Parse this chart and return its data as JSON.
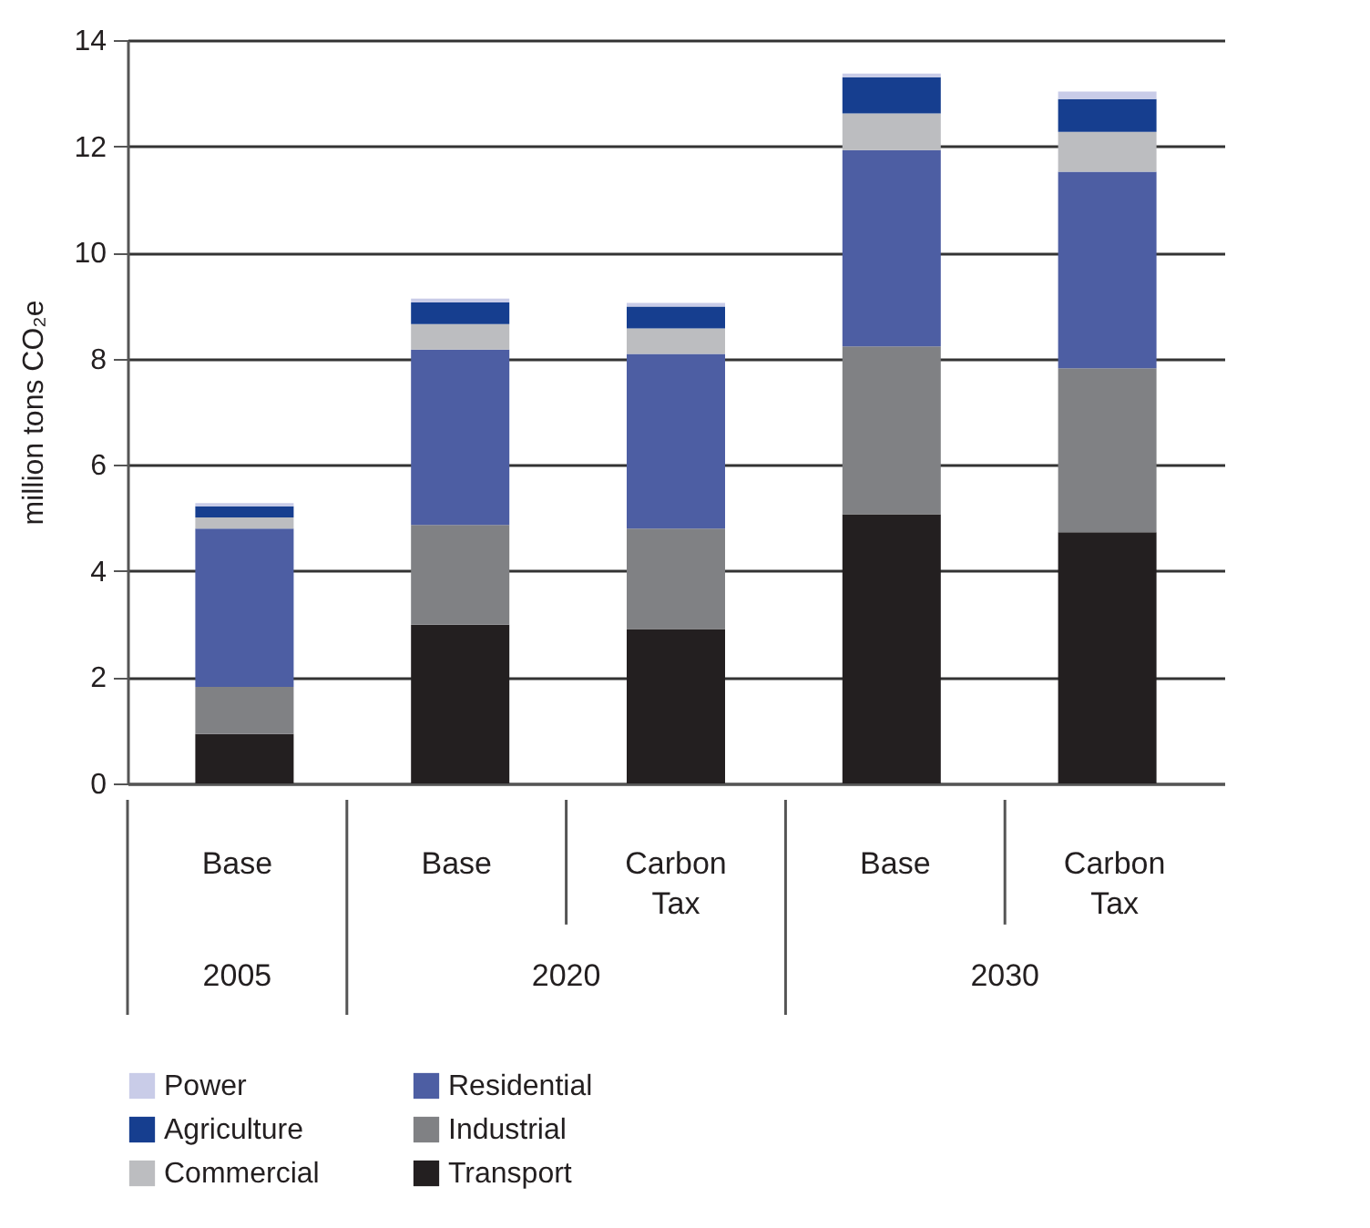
{
  "chart_data": {
    "type": "bar",
    "stacked": true,
    "ylabel": "million tons CO₂e",
    "categories": [
      "Base",
      "Base",
      "Carbon Tax",
      "Base",
      "Carbon Tax"
    ],
    "annotations": [
      "2005",
      "2020",
      "2030"
    ],
    "ylim": [
      0,
      14
    ],
    "yticks": [
      0,
      2,
      4,
      6,
      8,
      10,
      12,
      14
    ],
    "grid": "y",
    "legend": "bottom",
    "series": [
      {
        "name": "Transport",
        "color": "#231f20",
        "values": [
          0.93,
          2.99,
          2.91,
          5.07,
          4.73
        ]
      },
      {
        "name": "Industrial",
        "color": "#808184",
        "values": [
          0.89,
          1.88,
          1.89,
          3.16,
          3.09
        ]
      },
      {
        "name": "Residential",
        "color": "#4d5ea3",
        "values": [
          2.98,
          3.3,
          3.29,
          3.7,
          3.7
        ]
      },
      {
        "name": "Commercial",
        "color": "#bcbdc0",
        "values": [
          0.21,
          0.48,
          0.48,
          0.69,
          0.75
        ]
      },
      {
        "name": "Agriculture",
        "color": "#163e8f",
        "values": [
          0.21,
          0.41,
          0.41,
          0.68,
          0.62
        ]
      },
      {
        "name": "Power",
        "color": "#c9cce8",
        "values": [
          0.06,
          0.07,
          0.07,
          0.07,
          0.14
        ]
      }
    ]
  }
}
